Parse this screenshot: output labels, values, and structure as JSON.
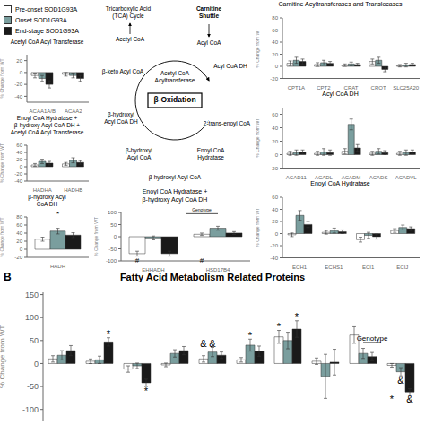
{
  "chart_data": [
    {
      "type": "diagram",
      "annotations": [
        "Carnitine\nShuttle",
        "Tricarboxylic Acid\n(TCA) Cycle",
        "Acetyl CoA",
        "Acyl CoA",
        "β-Oxidation",
        "Acyl CoA DH",
        "2-trans-enoyl CoA",
        "Enoyl CoA\nHydratase",
        "β-hydroxyl\nAcyl CoA",
        "β-hydroxyl\nAcyl CoA DH",
        "β-keto Acyl CoA",
        "β-hydroxyl Acyl CoA",
        "Acetyl CoA\nAcyltransferase"
      ]
    },
    {
      "type": "bar",
      "title": "Carnitine Acyltransferases and Translocases",
      "ylabel": "% Change from WT",
      "categories": [
        "CPT1A",
        "CPT2",
        "CRAT",
        "CROT",
        "SLC25A20"
      ],
      "series": [
        {
          "name": "Pre-onset SOD1G93A",
          "color": "#FFFFFF",
          "values": [
            5,
            3,
            2,
            8,
            1
          ],
          "errors": [
            4,
            3,
            2,
            4,
            2
          ]
        },
        {
          "name": "Onset SOD1G93A",
          "color": "#7a9e9e",
          "values": [
            10,
            6,
            4,
            10,
            2
          ],
          "errors": [
            5,
            4,
            3,
            5,
            3
          ]
        },
        {
          "name": "End-stage SOD1G93A",
          "color": "#1a1a1a",
          "values": [
            8,
            5,
            3,
            -5,
            3
          ],
          "errors": [
            4,
            3,
            2,
            4,
            2
          ]
        }
      ],
      "ylim": [
        -20,
        80
      ],
      "yticks": [
        -20,
        0,
        20,
        40,
        60,
        80
      ],
      "grid": false
    },
    {
      "type": "bar",
      "title": "Acetyl CoA Acyl Transferase",
      "ylabel": "% Change from WT",
      "categories": [
        "ACAA1A/B",
        "ACAA2"
      ],
      "series": [
        {
          "name": "Pre-onset SOD1G93A",
          "color": "#FFFFFF",
          "values": [
            -5,
            -3
          ],
          "errors": [
            4,
            3
          ]
        },
        {
          "name": "Onset SOD1G93A",
          "color": "#7a9e9e",
          "values": [
            -10,
            -5
          ],
          "errors": [
            5,
            4
          ]
        },
        {
          "name": "End-stage SOD1G93A",
          "color": "#1a1a1a",
          "values": [
            -20,
            -10
          ],
          "errors": [
            6,
            5
          ]
        }
      ],
      "ylim": [
        -50,
        30
      ],
      "yticks": [
        -40,
        -20,
        0,
        20
      ],
      "grid": false
    },
    {
      "type": "bar",
      "title": "Acyl CoA DH",
      "ylabel": "% Change from WT",
      "categories": [
        "ACAD11",
        "ACADL",
        "ACADM",
        "ACADS",
        "ACADVL"
      ],
      "series": [
        {
          "name": "Pre-onset SOD1G93A",
          "color": "#FFFFFF",
          "values": [
            2,
            2,
            5,
            2,
            2
          ],
          "errors": [
            3,
            3,
            4,
            3,
            3
          ]
        },
        {
          "name": "Onset SOD1G93A",
          "color": "#7a9e9e",
          "values": [
            3,
            4,
            45,
            5,
            3
          ],
          "errors": [
            4,
            5,
            8,
            4,
            4
          ]
        },
        {
          "name": "End-stage SOD1G93A",
          "color": "#1a1a1a",
          "values": [
            4,
            3,
            10,
            3,
            4
          ],
          "errors": [
            3,
            4,
            5,
            3,
            3
          ]
        }
      ],
      "ylim": [
        -20,
        70
      ],
      "yticks": [
        -20,
        0,
        20,
        40,
        60
      ],
      "grid": false
    },
    {
      "type": "bar",
      "title": "Enoyl CoA Hydratase",
      "ylabel": "% Change from WT",
      "categories": [
        "ECH1",
        "ECHS1",
        "ECI1",
        "ECIJ"
      ],
      "series": [
        {
          "name": "Pre-onset SOD1G93A",
          "color": "#FFFFFF",
          "values": [
            -2,
            2,
            -10,
            5
          ],
          "errors": [
            3,
            3,
            4,
            3
          ]
        },
        {
          "name": "Onset SOD1G93A",
          "color": "#7a9e9e",
          "values": [
            30,
            5,
            -3,
            10
          ],
          "errors": [
            8,
            4,
            5,
            4
          ]
        },
        {
          "name": "End-stage SOD1G93A",
          "color": "#1a1a1a",
          "values": [
            15,
            3,
            -5,
            8
          ],
          "errors": [
            5,
            3,
            4,
            3
          ]
        }
      ],
      "ylim": [
        -40,
        60
      ],
      "yticks": [
        -40,
        -20,
        0,
        20,
        40,
        60
      ],
      "grid": false
    },
    {
      "type": "bar",
      "title": "Enoyl CoA Hydratase +\nβ-hydroxy Acyl CoA DH",
      "ylabel": "% Change from WT",
      "categories": [
        "EHHADH",
        "HSD17B4"
      ],
      "series": [
        {
          "name": "Pre-onset SOD1G93A",
          "color": "#FFFFFF",
          "values": [
            -70,
            10
          ],
          "errors": [
            10,
            5
          ]
        },
        {
          "name": "Onset SOD1G93A",
          "color": "#7a9e9e",
          "values": [
            -5,
            35
          ],
          "errors": [
            8,
            8
          ]
        },
        {
          "name": "End-stage SOD1G93A",
          "color": "#1a1a1a",
          "values": [
            -70,
            15
          ],
          "errors": [
            10,
            6
          ]
        }
      ],
      "ylim": [
        -100,
        100
      ],
      "yticks": [
        -100,
        -50,
        0,
        50,
        100
      ],
      "grid": false,
      "annotations": [
        {
          "text": "Genotype",
          "category": 1,
          "series": 0,
          "y": 95,
          "line": true
        },
        {
          "text": "#",
          "category": 0,
          "series": 0,
          "y": -85
        },
        {
          "text": "#",
          "category": 1,
          "series": 0,
          "y": -85
        }
      ]
    },
    {
      "type": "bar",
      "title": "Enoyl CoA Hydratase +\nβ-hydroxy Acyl CoA DH +\nAcetyl CoA Acyl Transferase",
      "ylabel": "% Change from WT",
      "categories": [
        "HADHA",
        "HADHB"
      ],
      "series": [
        {
          "name": "Pre-onset SOD1G93A",
          "color": "#FFFFFF",
          "values": [
            5,
            8
          ],
          "errors": [
            4,
            4
          ]
        },
        {
          "name": "Onset SOD1G93A",
          "color": "#7a9e9e",
          "values": [
            15,
            18
          ],
          "errors": [
            6,
            7
          ]
        },
        {
          "name": "End-stage SOD1G93A",
          "color": "#1a1a1a",
          "values": [
            10,
            12
          ],
          "errors": [
            5,
            5
          ]
        }
      ],
      "ylim": [
        -40,
        60
      ],
      "yticks": [
        -40,
        -20,
        0,
        20,
        40,
        60
      ],
      "grid": false
    },
    {
      "type": "bar",
      "title": "β-hydroxy Acyl\nCoA DH",
      "ylabel": "% Change from WT",
      "categories": [
        "HADH"
      ],
      "series": [
        {
          "name": "Pre-onset SOD1G93A",
          "color": "#FFFFFF",
          "values": [
            25
          ],
          "errors": [
            5
          ]
        },
        {
          "name": "Onset SOD1G93A",
          "color": "#7a9e9e",
          "values": [
            45
          ],
          "errors": [
            7
          ]
        },
        {
          "name": "End-stage SOD1G93A",
          "color": "#1a1a1a",
          "values": [
            35
          ],
          "errors": [
            6
          ]
        }
      ],
      "ylim": [
        -20,
        80
      ],
      "yticks": [
        -20,
        0,
        20,
        40,
        60,
        80
      ],
      "grid": false,
      "annotations": [
        {
          "text": "*",
          "category": 0,
          "series": 1,
          "y": 82
        }
      ]
    },
    {
      "type": "bar",
      "title": "Fatty Acid Metabolism Related Proteins",
      "ylabel": "% Change from WT",
      "categories": [
        null,
        null,
        null,
        null,
        null,
        null,
        null,
        null,
        null,
        null
      ],
      "series": [
        {
          "name": "Pre-onset SOD1G93A",
          "color": "#FFFFFF",
          "values": [
            10,
            5,
            -12,
            -3,
            10,
            8,
            58,
            5,
            62,
            -4
          ],
          "errors": [
            7,
            5,
            7,
            4,
            7,
            5,
            14,
            7,
            18,
            4
          ]
        },
        {
          "name": "Onset SOD1G93A",
          "color": "#7a9e9e",
          "values": [
            18,
            8,
            -5,
            22,
            25,
            40,
            50,
            -28,
            22,
            -18
          ],
          "errors": [
            10,
            8,
            6,
            8,
            10,
            13,
            18,
            48,
            11,
            9
          ]
        },
        {
          "name": "End-stage SOD1G93A",
          "color": "#1a1a1a",
          "values": [
            28,
            47,
            -42,
            28,
            18,
            27,
            75,
            3,
            15,
            -62
          ],
          "errors": [
            11,
            9,
            8,
            9,
            7,
            11,
            18,
            28,
            9,
            7
          ]
        }
      ],
      "ylim": [
        -125,
        155
      ],
      "yticks": [
        -100,
        -50,
        0,
        50,
        100,
        150
      ],
      "grid": false,
      "tick_labels": "y",
      "annotations": [
        {
          "text": "B"
        },
        {
          "text": "*",
          "category": 1,
          "series": 2,
          "y": 57
        },
        {
          "text": "*",
          "category": 2,
          "series": 2,
          "y": -51
        },
        {
          "text": "&",
          "category": 4,
          "series": 0,
          "y": 36
        },
        {
          "text": "&",
          "category": 4,
          "series": 1,
          "y": 36
        },
        {
          "text": "*",
          "category": 5,
          "series": 1,
          "y": 54
        },
        {
          "text": "*",
          "category": 6,
          "series": 0,
          "y": 73
        },
        {
          "text": "*",
          "category": 6,
          "series": 2,
          "y": 94
        },
        {
          "text": "Genotype",
          "category": 8,
          "series": 2,
          "y": 46,
          "line": true
        },
        {
          "text": "&",
          "category": 9,
          "series": 1,
          "y": -28
        },
        {
          "text": "*",
          "category": 9,
          "series": 0,
          "y": -70
        },
        {
          "text": "&",
          "category": 9,
          "series": 2,
          "y": -70
        }
      ]
    }
  ]
}
